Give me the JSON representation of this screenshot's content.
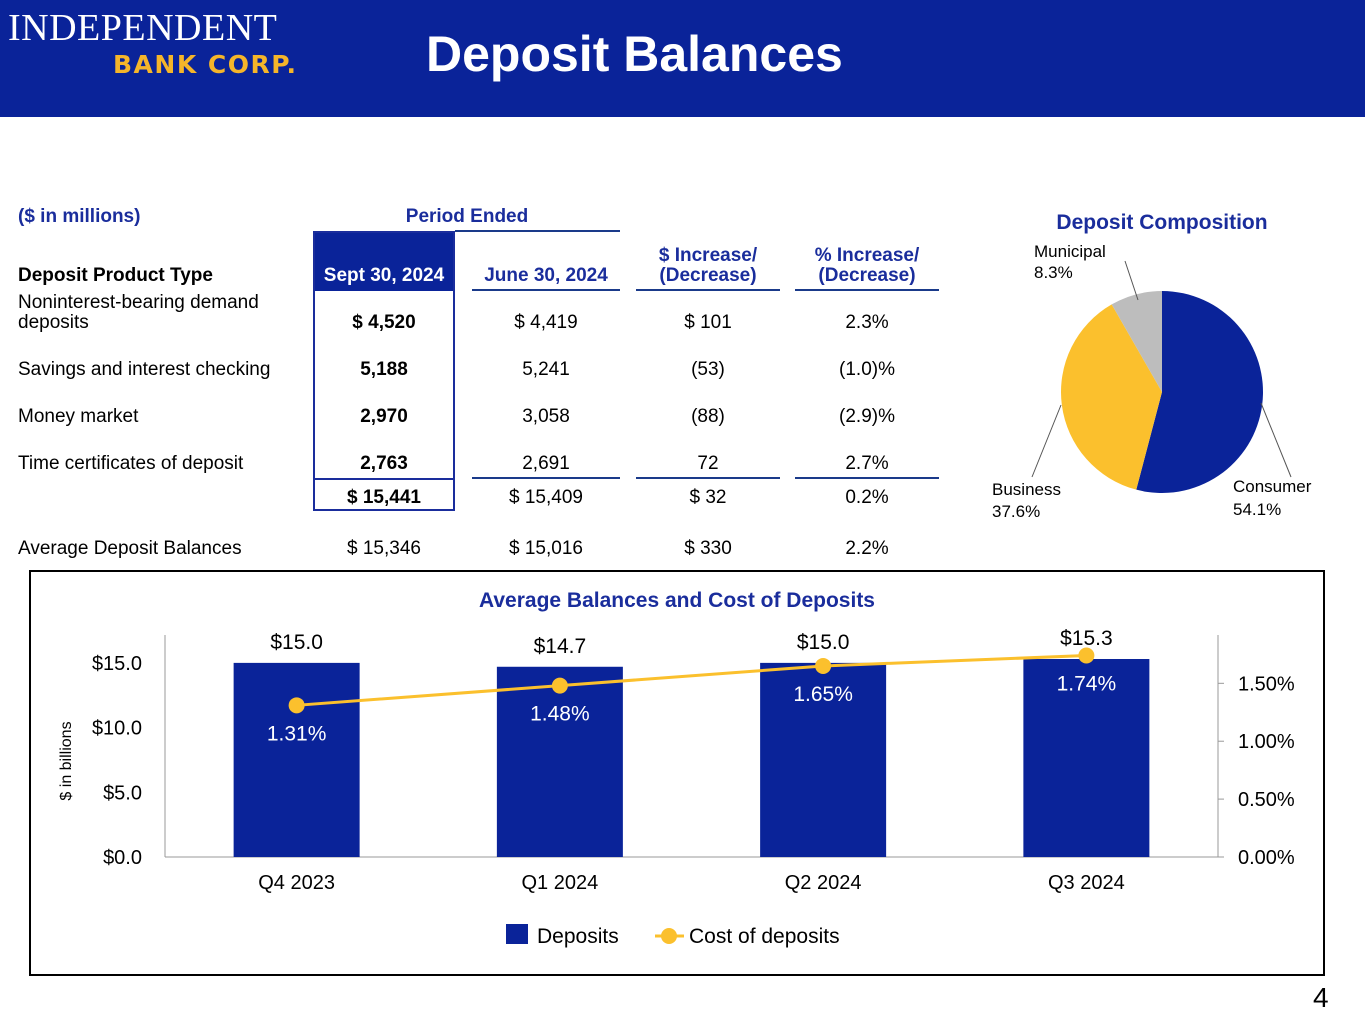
{
  "header": {
    "logo_line1": "INDEPENDENT",
    "logo_line2": "BANK CORP.",
    "title": "Deposit Balances",
    "background": "#0a2399"
  },
  "table": {
    "units": "($ in millions)",
    "period_ended": "Period Ended",
    "col_type": "Deposit Product Type",
    "col_sept": "Sept 30, 2024",
    "col_june": "June 30, 2024",
    "col_dollar_l1": "$ Increase/",
    "col_dollar_l2": "(Decrease)",
    "col_pct_l1": "% Increase/",
    "col_pct_l2": "(Decrease)",
    "rows": [
      {
        "label_l1": "Noninterest-bearing demand",
        "label_l2": "deposits",
        "sept": "$ 4,520",
        "june": "$ 4,419",
        "dollar": "$ 101",
        "pct": "2.3%"
      },
      {
        "label": "Savings and interest checking",
        "sept": "5,188",
        "june": "5,241",
        "dollar": "(53)",
        "pct": "(1.0)%"
      },
      {
        "label": "Money market",
        "sept": "2,970",
        "june": "3,058",
        "dollar": "(88)",
        "pct": "(2.9)%"
      },
      {
        "label": "Time certificates of deposit",
        "sept": "2,763",
        "june": "2,691",
        "dollar": "72",
        "pct": "2.7%"
      }
    ],
    "total": {
      "sept": "$ 15,441",
      "june": "$ 15,409",
      "dollar": "$ 32",
      "pct": "0.2%"
    },
    "average": {
      "label": "Average Deposit Balances",
      "sept": "$ 15,346",
      "june": "$ 15,016",
      "dollar": "$ 330",
      "pct": "2.2%"
    }
  },
  "page_number": "4",
  "chart_data": [
    {
      "type": "pie",
      "title": "Deposit Composition",
      "slices": [
        {
          "name": "Consumer",
          "value": 54.1,
          "label": "54.1%",
          "color": "#0a2399"
        },
        {
          "name": "Business",
          "value": 37.6,
          "label": "37.6%",
          "color": "#fbc02d"
        },
        {
          "name": "Municipal",
          "value": 8.3,
          "label": "8.3%",
          "color": "#bdbdbd"
        }
      ]
    },
    {
      "type": "bar",
      "title": "Average Balances and Cost of Deposits",
      "categories": [
        "Q4 2023",
        "Q1 2024",
        "Q2 2024",
        "Q3 2024"
      ],
      "series": [
        {
          "name": "Deposits",
          "axis": "left",
          "values": [
            15.0,
            14.7,
            15.0,
            15.3
          ],
          "labels": [
            "$15.0",
            "$14.7",
            "$15.0",
            "$15.3"
          ],
          "color": "#0a2399"
        },
        {
          "name": "Cost of deposits",
          "type": "line",
          "axis": "right",
          "values": [
            1.31,
            1.48,
            1.65,
            1.74
          ],
          "labels": [
            "1.31%",
            "1.48%",
            "1.65%",
            "1.74%"
          ],
          "color": "#fbc02d"
        }
      ],
      "ylabel": "$ in billions",
      "ylim": [
        0,
        17
      ],
      "yticks": [
        "$0.0",
        "$5.0",
        "$10.0",
        "$15.0"
      ],
      "y2lim": [
        0,
        1.9
      ],
      "y2ticks": [
        "0.00%",
        "0.50%",
        "1.00%",
        "1.50%"
      ]
    }
  ]
}
